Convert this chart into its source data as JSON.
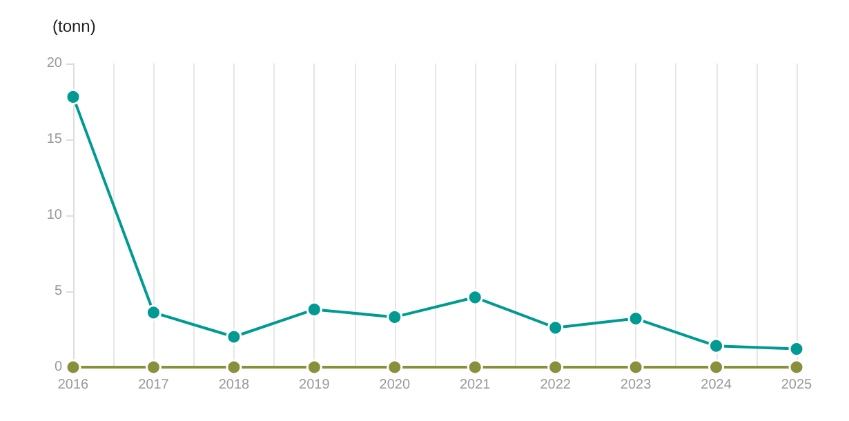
{
  "chart_data": {
    "type": "line",
    "ylabel": "(tonn)",
    "x": [
      2016,
      2017,
      2018,
      2019,
      2020,
      2021,
      2022,
      2023,
      2024,
      2025
    ],
    "series": [
      {
        "color": "#009a93",
        "values": [
          17.8,
          3.6,
          2.0,
          3.8,
          3.3,
          4.6,
          2.6,
          3.2,
          1.4,
          1.2
        ]
      },
      {
        "color": "#8a8f3c",
        "values": [
          0,
          0,
          0,
          0,
          0,
          0,
          0,
          0,
          0,
          0
        ]
      }
    ],
    "xlim": [
      2016,
      2025
    ],
    "xticks": [
      2016,
      {
        "value": 2016.5,
        "label": null
      },
      2017,
      {
        "value": 2017.5,
        "label": null
      },
      2018,
      {
        "value": 2018.5,
        "label": null
      },
      2019,
      {
        "value": 2019.5,
        "label": null
      },
      2020,
      {
        "value": 2020.5,
        "label": null
      },
      2021,
      {
        "value": 2021.5,
        "label": null
      },
      2022,
      {
        "value": 2022.5,
        "label": null
      },
      2023,
      {
        "value": 2023.5,
        "label": null
      },
      2024,
      {
        "value": 2024.5,
        "label": null
      },
      2025
    ],
    "ylim": [
      0,
      20
    ],
    "yticks": [
      0,
      5,
      10,
      15,
      20
    ],
    "grid": "x",
    "marker": "circle",
    "line_style": "solid"
  }
}
